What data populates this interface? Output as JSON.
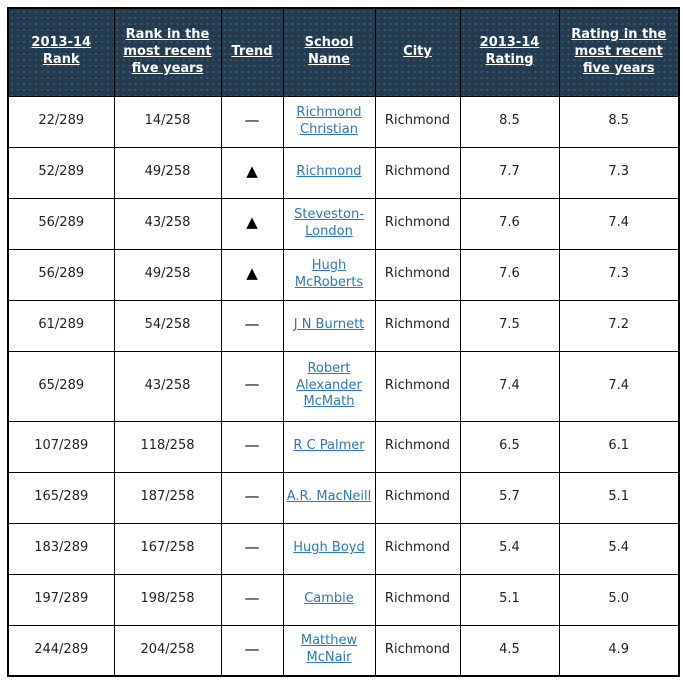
{
  "colors": {
    "header_background": "#243B4F",
    "header_dot": "#2E5B76",
    "header_text": "#FFFFFF",
    "link_blue": "#2B7AB9",
    "body_text": "#222222",
    "border": "#000000",
    "trend_glyph": "#000000"
  },
  "icons": {
    "trend_up": "▲",
    "trend_flat": "—"
  },
  "table": {
    "columns": [
      {
        "label": "2013-14 Rank"
      },
      {
        "label": "Rank in the most recent five years"
      },
      {
        "label": "Trend"
      },
      {
        "label": "School Name"
      },
      {
        "label": "City"
      },
      {
        "label": "2013-14 Rating"
      },
      {
        "label": "Rating in the most recent five years"
      }
    ],
    "rows": [
      {
        "rank_2013_14": "22/289",
        "rank_recent": "14/258",
        "trend": "flat",
        "trend_glyph": "—",
        "school": "Richmond Christian",
        "city": "Richmond",
        "rating_2013_14": "8.5",
        "rating_recent": "8.5"
      },
      {
        "rank_2013_14": "52/289",
        "rank_recent": "49/258",
        "trend": "up",
        "trend_glyph": "▲",
        "school": "Richmond",
        "city": "Richmond",
        "rating_2013_14": "7.7",
        "rating_recent": "7.3"
      },
      {
        "rank_2013_14": "56/289",
        "rank_recent": "43/258",
        "trend": "up",
        "trend_glyph": "▲",
        "school": "Steveston-London",
        "city": "Richmond",
        "rating_2013_14": "7.6",
        "rating_recent": "7.4"
      },
      {
        "rank_2013_14": "56/289",
        "rank_recent": "49/258",
        "trend": "up",
        "trend_glyph": "▲",
        "school": "Hugh McRoberts",
        "city": "Richmond",
        "rating_2013_14": "7.6",
        "rating_recent": "7.3"
      },
      {
        "rank_2013_14": "61/289",
        "rank_recent": "54/258",
        "trend": "flat",
        "trend_glyph": "—",
        "school": "J N Burnett",
        "city": "Richmond",
        "rating_2013_14": "7.5",
        "rating_recent": "7.2"
      },
      {
        "rank_2013_14": "65/289",
        "rank_recent": "43/258",
        "trend": "flat",
        "trend_glyph": "—",
        "school": "Robert Alexander McMath",
        "city": "Richmond",
        "rating_2013_14": "7.4",
        "rating_recent": "7.4"
      },
      {
        "rank_2013_14": "107/289",
        "rank_recent": "118/258",
        "trend": "flat",
        "trend_glyph": "—",
        "school": "R C Palmer",
        "city": "Richmond",
        "rating_2013_14": "6.5",
        "rating_recent": "6.1"
      },
      {
        "rank_2013_14": "165/289",
        "rank_recent": "187/258",
        "trend": "flat",
        "trend_glyph": "—",
        "school": "A.R. MacNeill",
        "city": "Richmond",
        "rating_2013_14": "5.7",
        "rating_recent": "5.1"
      },
      {
        "rank_2013_14": "183/289",
        "rank_recent": "167/258",
        "trend": "flat",
        "trend_glyph": "—",
        "school": "Hugh Boyd",
        "city": "Richmond",
        "rating_2013_14": "5.4",
        "rating_recent": "5.4"
      },
      {
        "rank_2013_14": "197/289",
        "rank_recent": "198/258",
        "trend": "flat",
        "trend_glyph": "—",
        "school": "Cambie",
        "city": "Richmond",
        "rating_2013_14": "5.1",
        "rating_recent": "5.0"
      },
      {
        "rank_2013_14": "244/289",
        "rank_recent": "204/258",
        "trend": "flat",
        "trend_glyph": "—",
        "school": "Matthew McNair",
        "city": "Richmond",
        "rating_2013_14": "4.5",
        "rating_recent": "4.9"
      }
    ]
  }
}
